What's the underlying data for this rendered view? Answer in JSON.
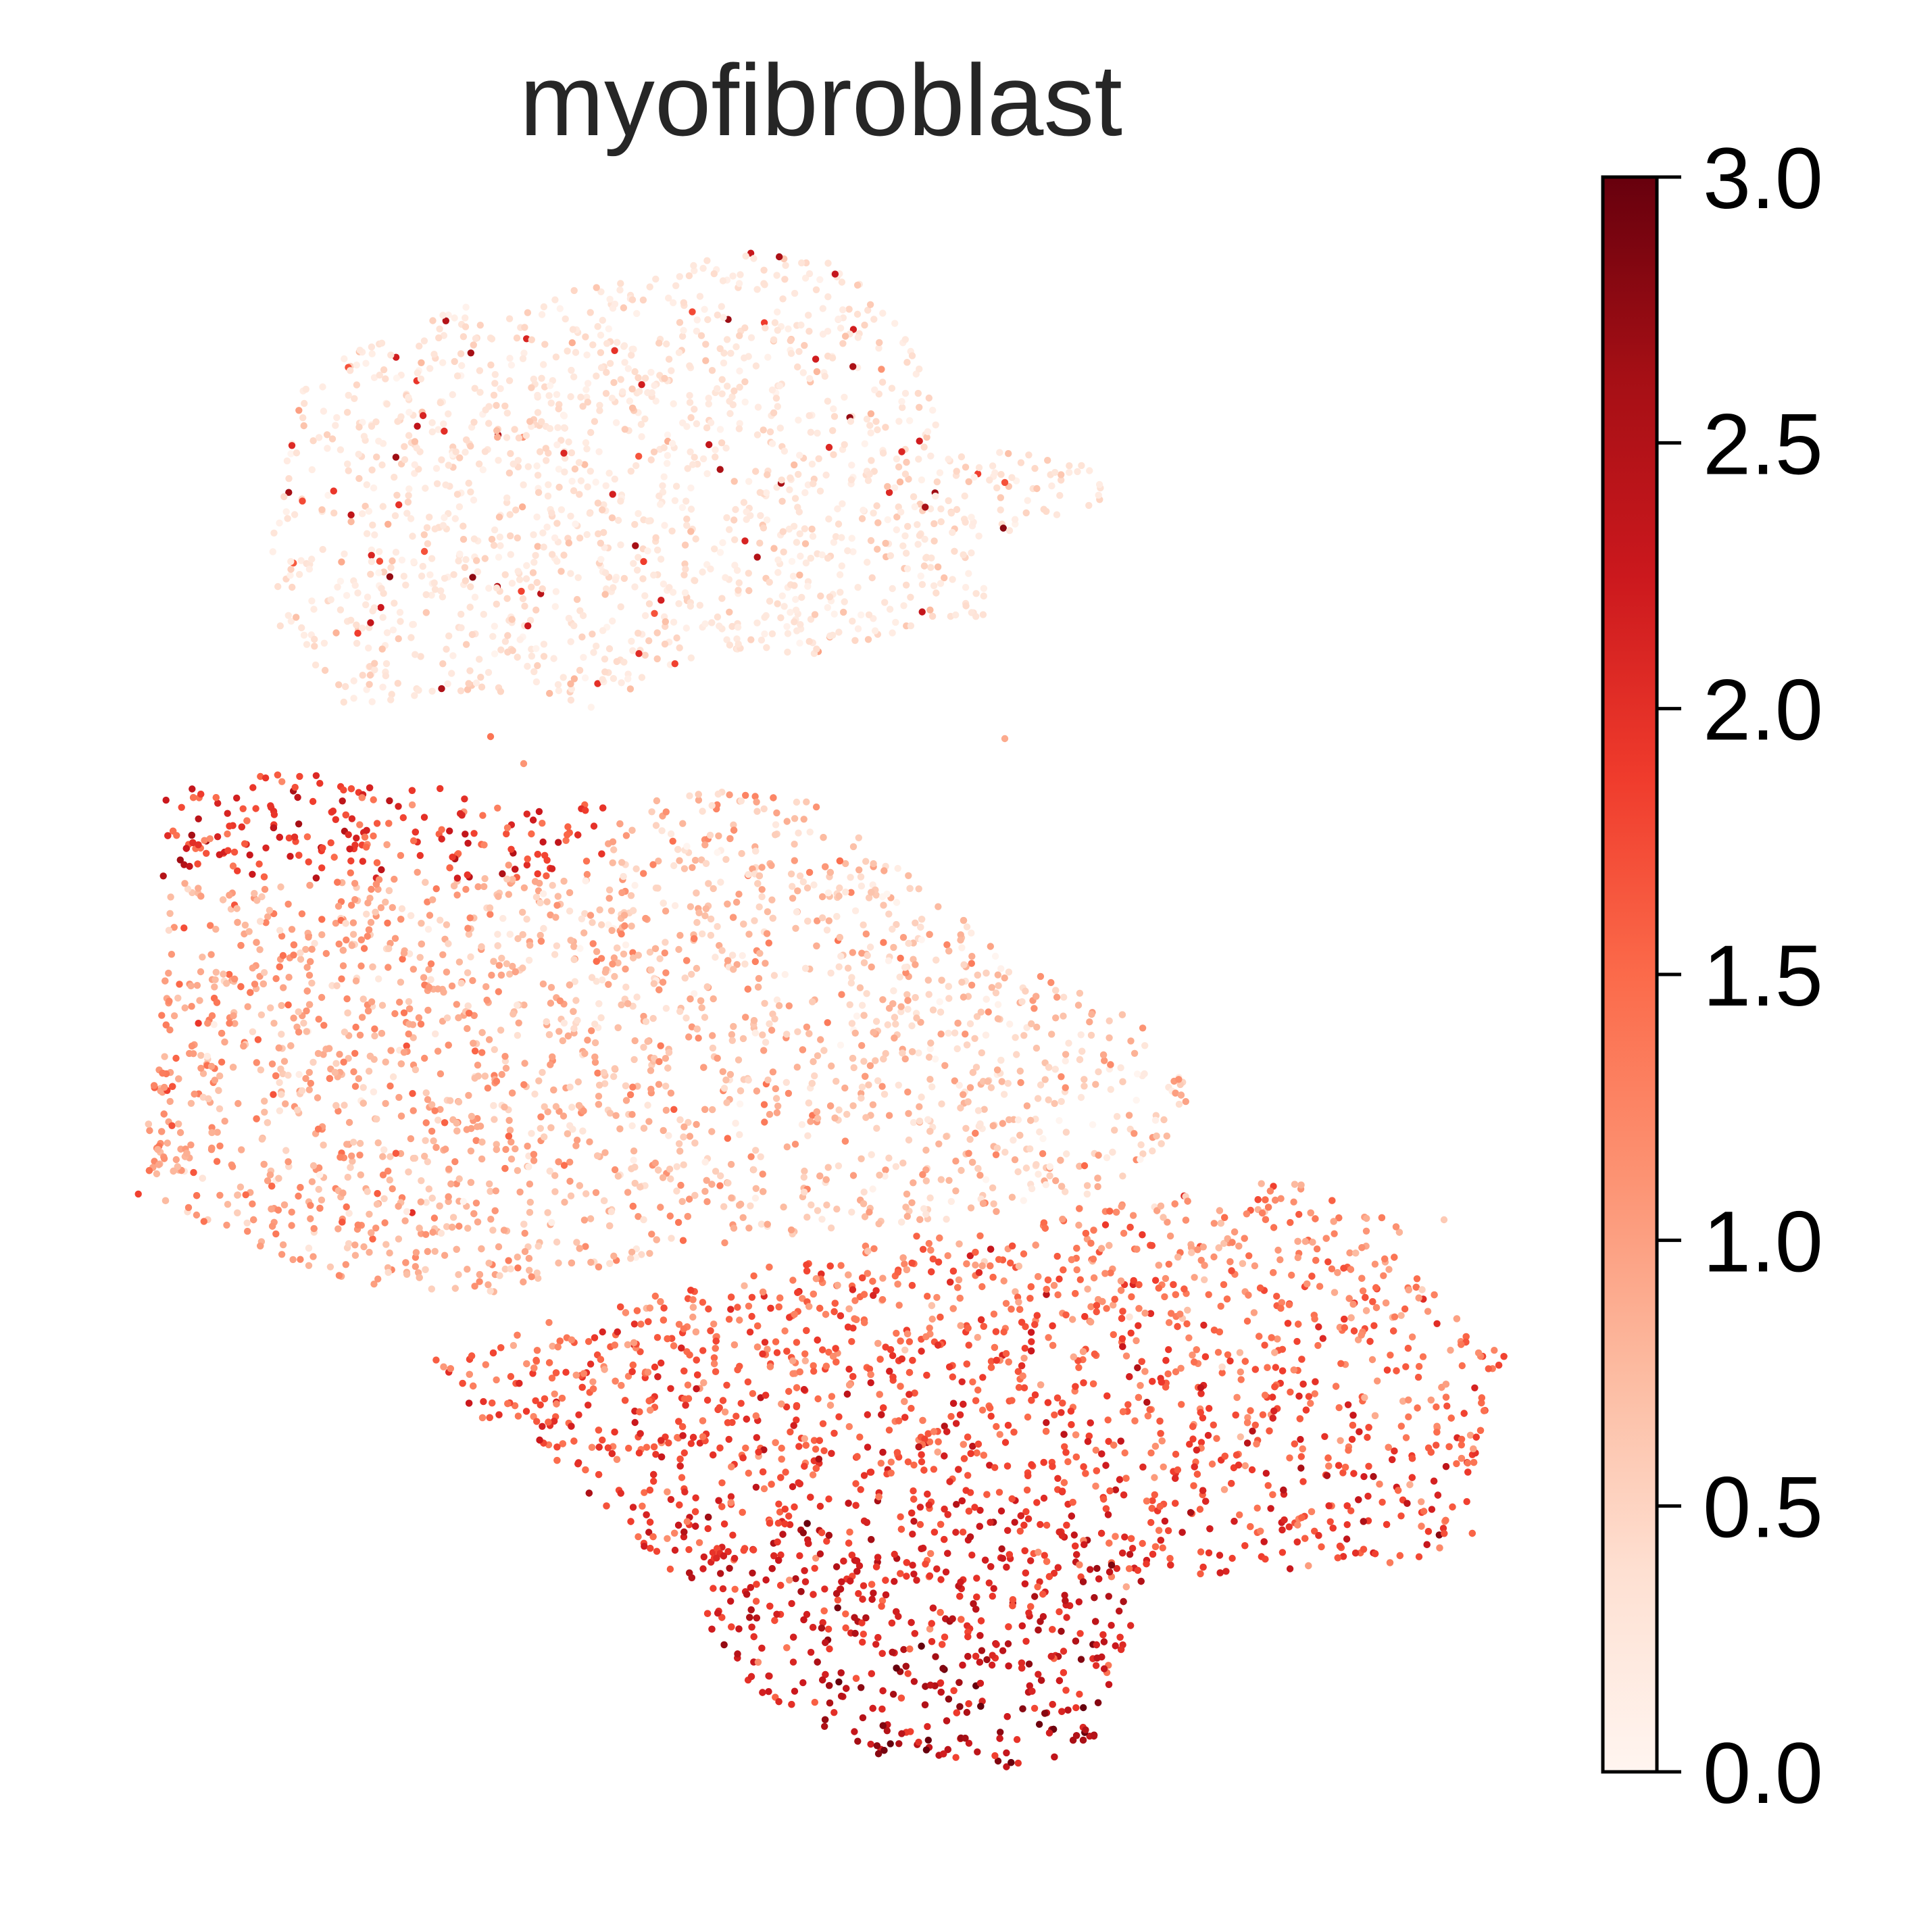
{
  "chart_data": {
    "type": "scatter",
    "title": "myofibroblast",
    "xlabel": "",
    "ylabel": "",
    "grid": false,
    "axes_visible": false,
    "colormap": "Reds",
    "colorbar": {
      "range": [
        0.0,
        3.0
      ],
      "ticks": [
        0.0,
        0.5,
        1.0,
        1.5,
        2.0,
        2.5,
        3.0
      ],
      "tick_labels": [
        "0.0",
        "0.5",
        "1.0",
        "1.5",
        "2.0",
        "2.5",
        "3.0"
      ]
    },
    "colors": [
      "#fff5f0",
      "#fee0d2",
      "#fcbba1",
      "#fc9272",
      "#fb6a4a",
      "#ef3b2c",
      "#cb181d",
      "#a50f15",
      "#67000d"
    ],
    "clusters": [
      {
        "name": "upper",
        "approx_expression": "low (mostly 0.0-0.5, sparse points up to ~2.8)"
      },
      {
        "name": "middle",
        "approx_expression": "moderate (mostly 0.5-1.5, top edge up to ~2.8)"
      },
      {
        "name": "lower",
        "approx_expression": "high (mostly 1.5-2.5, bottom-left up to ~3.0)"
      }
    ]
  }
}
